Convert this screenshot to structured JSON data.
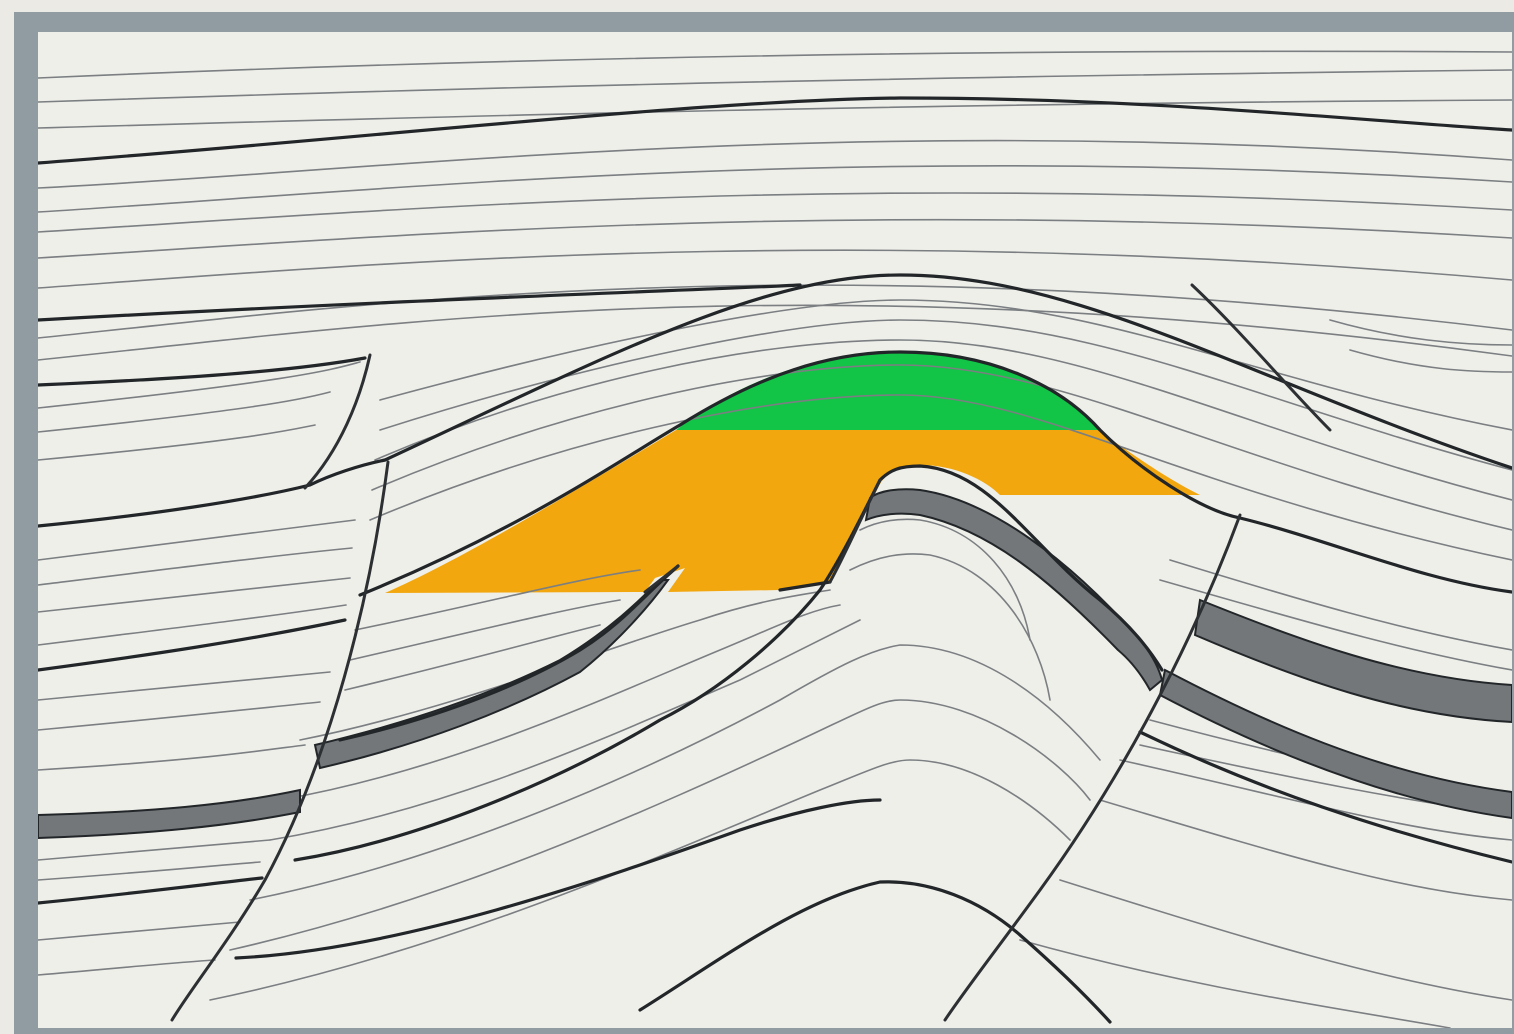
{
  "diagram": {
    "kind": "anticline trap geological cross-section",
    "colors": {
      "background": "#efefea",
      "frame": "#919ba2",
      "gas_zone": "#12c547",
      "oil_zone": "#f2a70f",
      "bold_horizon": "#222629",
      "thin_horizon": "#7b7f82",
      "shale_band": "#73777a",
      "fault": "#2d3033"
    }
  }
}
